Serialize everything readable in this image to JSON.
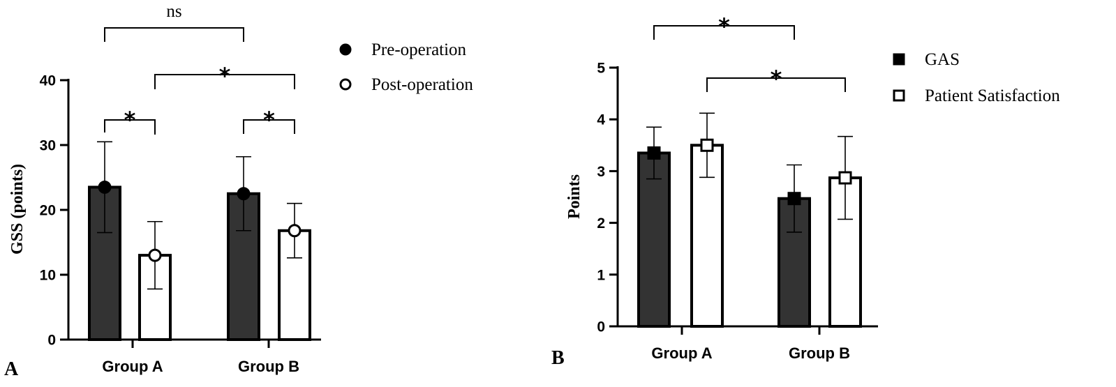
{
  "chart_data": [
    {
      "panel_label": "A",
      "type": "bar",
      "ylabel": "GSS (points)",
      "ylim": [
        0,
        40
      ],
      "yticks": [
        "0",
        "10",
        "20",
        "30",
        "40"
      ],
      "categories": [
        "Group A",
        "Group B"
      ],
      "legend_position": "right",
      "series": [
        {
          "name": "Pre-operation",
          "marker": "filled-circle",
          "fill": "#333333",
          "values": [
            23.5,
            22.5
          ],
          "errors": [
            7.0,
            5.7
          ]
        },
        {
          "name": "Post-operation",
          "marker": "open-circle",
          "fill": "#ffffff",
          "values": [
            13.0,
            16.8
          ],
          "errors": [
            5.2,
            4.2
          ]
        }
      ],
      "comparisons": [
        {
          "label": "ns",
          "from": "Group A / Pre-operation",
          "to": "Group B / Pre-operation"
        },
        {
          "label": "*",
          "from": "Group A / Post-operation",
          "to": "Group B / Post-operation"
        },
        {
          "label": "*",
          "from": "Group A / Pre-operation",
          "to": "Group A / Post-operation"
        },
        {
          "label": "*",
          "from": "Group B / Pre-operation",
          "to": "Group B / Post-operation"
        }
      ]
    },
    {
      "panel_label": "B",
      "type": "bar",
      "ylabel": "Points",
      "ylim": [
        0,
        5
      ],
      "yticks": [
        "0",
        "1",
        "2",
        "3",
        "4",
        "5"
      ],
      "categories": [
        "Group A",
        "Group B"
      ],
      "legend_position": "right",
      "series": [
        {
          "name": "GAS",
          "marker": "filled-square",
          "fill": "#333333",
          "values": [
            3.35,
            2.47
          ],
          "errors": [
            0.5,
            0.65
          ]
        },
        {
          "name": "Patient Satisfaction",
          "marker": "open-square",
          "fill": "#ffffff",
          "values": [
            3.5,
            2.87
          ],
          "errors": [
            0.62,
            0.8
          ]
        }
      ],
      "comparisons": [
        {
          "label": "*",
          "from": "Group A / GAS",
          "to": "Group B / GAS"
        },
        {
          "label": "*",
          "from": "Group A / Patient Satisfaction",
          "to": "Group B / Patient Satisfaction"
        }
      ]
    }
  ]
}
